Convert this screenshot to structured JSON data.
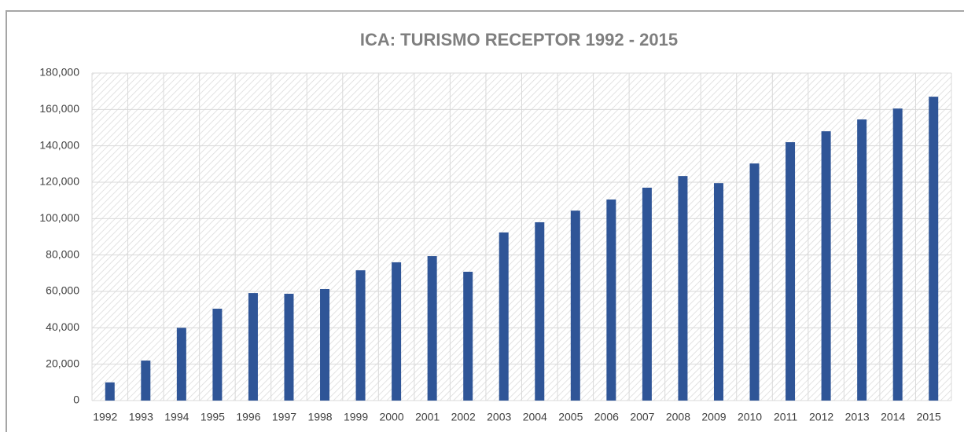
{
  "chart_data": {
    "type": "bar",
    "title": "ICA: TURISMO RECEPTOR 1992 - 2015",
    "categories": [
      "1992",
      "1993",
      "1994",
      "1995",
      "1996",
      "1997",
      "1998",
      "1999",
      "2000",
      "2001",
      "2002",
      "2003",
      "2004",
      "2005",
      "2006",
      "2007",
      "2008",
      "2009",
      "2010",
      "2011",
      "2012",
      "2013",
      "2014",
      "2015"
    ],
    "values": [
      10000,
      22000,
      40000,
      50500,
      59100,
      58700,
      61300,
      71600,
      76000,
      79400,
      70800,
      92400,
      98000,
      104400,
      110500,
      117000,
      123400,
      119500,
      130300,
      142000,
      148000,
      154500,
      160500,
      167000
    ],
    "color": "#2f5597",
    "ylim": [
      0,
      180000
    ],
    "yticks": [
      0,
      {
        "value": 20000,
        "label": "20,000"
      },
      {
        "value": 40000,
        "label": "40,000"
      },
      {
        "value": 60000,
        "label": "60,000"
      },
      {
        "value": 80000,
        "label": "80,000"
      },
      {
        "value": 100000,
        "label": "100,000"
      },
      {
        "value": 120000,
        "label": "120,000"
      },
      {
        "value": 140000,
        "label": "140,000"
      },
      {
        "value": 160000,
        "label": "160,000"
      },
      {
        "value": 180000,
        "label": "180,000"
      }
    ],
    "grid": true
  }
}
